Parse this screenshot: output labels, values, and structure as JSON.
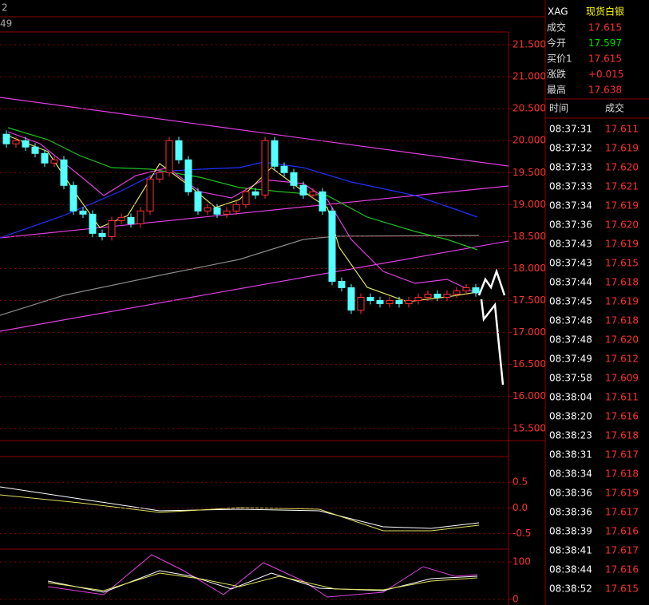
{
  "header_fragments": [
    "2",
    "49"
  ],
  "chart": {
    "ylim": [
      15.31,
      21.7
    ],
    "yticks": [
      {
        "value": 21.5,
        "label": "21.500"
      },
      {
        "value": 21.0,
        "label": "21.000"
      },
      {
        "value": 20.5,
        "label": "20.500"
      },
      {
        "value": 20.0,
        "label": "20.000"
      },
      {
        "value": 19.5,
        "label": "19.500"
      },
      {
        "value": 19.0,
        "label": "19.000"
      },
      {
        "value": 18.5,
        "label": "18.500"
      },
      {
        "value": 18.0,
        "label": "18.000"
      },
      {
        "value": 17.5,
        "label": "17.500"
      },
      {
        "value": 17.0,
        "label": "17.000"
      },
      {
        "value": 16.5,
        "label": "16.500"
      },
      {
        "value": 16.0,
        "label": "16.000"
      },
      {
        "value": 15.5,
        "label": "15.500"
      }
    ],
    "candles": {
      "open": [
        20.1,
        19.95,
        20.0,
        19.9,
        19.8,
        19.65,
        19.7,
        19.3,
        18.9,
        18.85,
        18.55,
        18.5,
        18.75,
        18.8,
        18.7,
        18.9,
        19.4,
        19.5,
        20.0,
        19.7,
        19.2,
        18.9,
        18.95,
        18.85,
        18.9,
        19.0,
        19.2,
        19.15,
        20.0,
        19.6,
        19.5,
        19.3,
        19.15,
        19.2,
        18.9,
        17.8,
        17.7,
        17.35,
        17.55,
        17.5,
        17.45,
        17.5,
        17.45,
        17.5,
        17.55,
        17.6,
        17.55,
        17.6,
        17.65,
        17.7
      ],
      "high": [
        20.16,
        20.06,
        20.06,
        19.96,
        19.86,
        19.76,
        19.76,
        19.36,
        18.96,
        18.91,
        18.61,
        18.81,
        18.86,
        18.86,
        18.96,
        19.46,
        19.56,
        20.06,
        20.06,
        19.76,
        19.26,
        19.01,
        19.01,
        18.96,
        19.06,
        19.26,
        19.26,
        20.06,
        20.06,
        19.66,
        19.56,
        19.36,
        19.26,
        19.26,
        18.96,
        17.86,
        17.76,
        17.61,
        17.61,
        17.56,
        17.56,
        17.56,
        17.56,
        17.61,
        17.66,
        17.66,
        17.66,
        17.71,
        17.76,
        17.76
      ],
      "low": [
        19.89,
        19.89,
        19.84,
        19.74,
        19.59,
        19.59,
        19.24,
        18.84,
        18.79,
        18.49,
        18.44,
        18.44,
        18.69,
        18.64,
        18.64,
        18.84,
        19.34,
        19.44,
        19.64,
        19.14,
        18.84,
        18.84,
        18.79,
        18.79,
        18.84,
        18.94,
        19.09,
        19.09,
        19.54,
        19.44,
        19.24,
        19.09,
        19.09,
        18.84,
        17.74,
        17.64,
        17.29,
        17.29,
        17.44,
        17.39,
        17.39,
        17.39,
        17.39,
        17.44,
        17.49,
        17.49,
        17.49,
        17.54,
        17.59,
        17.56
      ],
      "close": [
        19.95,
        20.0,
        19.9,
        19.8,
        19.65,
        19.7,
        19.3,
        18.9,
        18.85,
        18.55,
        18.5,
        18.75,
        18.8,
        18.7,
        18.9,
        19.4,
        19.5,
        20.0,
        19.7,
        19.2,
        18.9,
        18.95,
        18.85,
        18.9,
        19.0,
        19.2,
        19.15,
        20.0,
        19.6,
        19.5,
        19.3,
        19.15,
        19.2,
        18.9,
        17.8,
        17.7,
        17.35,
        17.55,
        17.5,
        17.45,
        17.5,
        17.45,
        17.5,
        17.55,
        17.6,
        17.55,
        17.6,
        17.65,
        17.7,
        17.62
      ]
    }
  },
  "macd": {
    "ylim": [
      -0.8,
      1.0
    ],
    "yticks": [
      0.5,
      {
        "value": 0,
        "label": "0.0"
      },
      -0.5
    ]
  },
  "kdj": {
    "ylim": [
      -15,
      130
    ],
    "yticks": [
      100,
      0
    ]
  },
  "quote": {
    "symbol": "XAG",
    "name": "现货白银",
    "items": [
      {
        "label": "成交",
        "value": "17.615"
      },
      {
        "label": "今开",
        "value": "17.597"
      },
      {
        "label": "买价1",
        "value": "17.615"
      },
      {
        "label": "涨跌",
        "value": "+0.015"
      },
      {
        "label": "最高",
        "value": "17.638"
      }
    ]
  },
  "trades": {
    "header": [
      "时间",
      "成交"
    ],
    "rows": [
      [
        "08:37:31",
        "17.611"
      ],
      [
        "08:37:32",
        "17.619"
      ],
      [
        "08:37:33",
        "17.620"
      ],
      [
        "08:37:33",
        "17.621"
      ],
      [
        "08:37:34",
        "17.619"
      ],
      [
        "08:37:36",
        "17.620"
      ],
      [
        "08:37:43",
        "17.619"
      ],
      [
        "08:37:43",
        "17.615"
      ],
      [
        "08:37:44",
        "17.618"
      ],
      [
        "08:37:45",
        "17.619"
      ],
      [
        "08:37:48",
        "17.618"
      ],
      [
        "08:37:48",
        "17.620"
      ],
      [
        "08:37:49",
        "17.612"
      ],
      [
        "08:37:58",
        "17.609"
      ],
      [
        "08:38:04",
        "17.611"
      ],
      [
        "08:38:20",
        "17.616"
      ],
      [
        "08:38:23",
        "17.618"
      ],
      [
        "08:38:31",
        "17.617"
      ],
      [
        "08:38:34",
        "17.618"
      ],
      [
        "08:38:36",
        "17.619"
      ],
      [
        "08:38:36",
        "17.617"
      ],
      [
        "08:38:39",
        "17.616"
      ],
      [
        "08:38:41",
        "17.617"
      ],
      [
        "08:38:44",
        "17.616"
      ],
      [
        "08:38:52",
        "17.615"
      ]
    ]
  }
}
